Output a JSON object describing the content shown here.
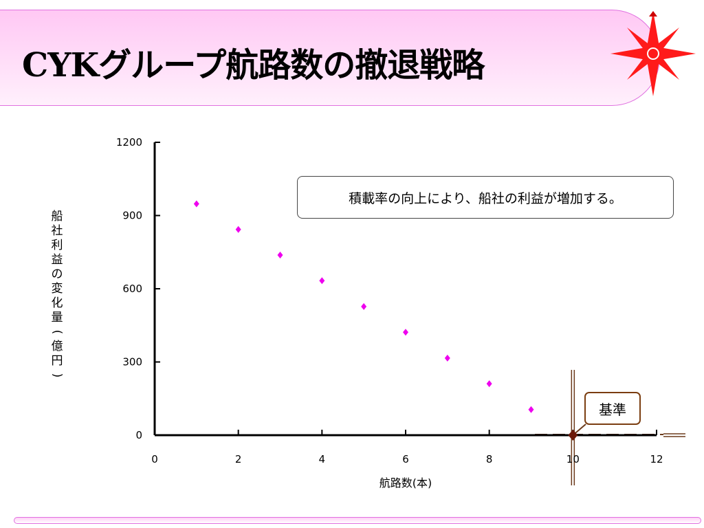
{
  "slide": {
    "title": "CYKグループ航路数の撤退戦略"
  },
  "colors": {
    "points": "#ee00ee",
    "reference_marker": "#6b1a0a",
    "axis": "#000000",
    "reference_line": "#6b3a1a",
    "banner_border": "#e070e0",
    "compass": "#ff1a1a"
  },
  "icons": {
    "logo": "compass-star-icon"
  },
  "chart_data": {
    "type": "scatter",
    "title": "",
    "xlabel": "航路数(本)",
    "ylabel": "船社利益の変化量(億円)",
    "xlim": [
      0,
      12
    ],
    "ylim": [
      0,
      1200
    ],
    "x_ticks": [
      0,
      2,
      4,
      6,
      8,
      10,
      12
    ],
    "y_ticks": [
      0,
      300,
      600,
      900,
      1200
    ],
    "grid": false,
    "series": [
      {
        "x": [
          1,
          2,
          3,
          4,
          5,
          6,
          7,
          8,
          9
        ],
        "y": [
          948,
          843,
          738,
          633,
          527,
          422,
          316,
          211,
          105
        ]
      }
    ],
    "reference_point": {
      "x": 10,
      "y": 0,
      "label": "基準"
    },
    "annotation": "積載率の向上により、船社の利益が増加する。"
  }
}
